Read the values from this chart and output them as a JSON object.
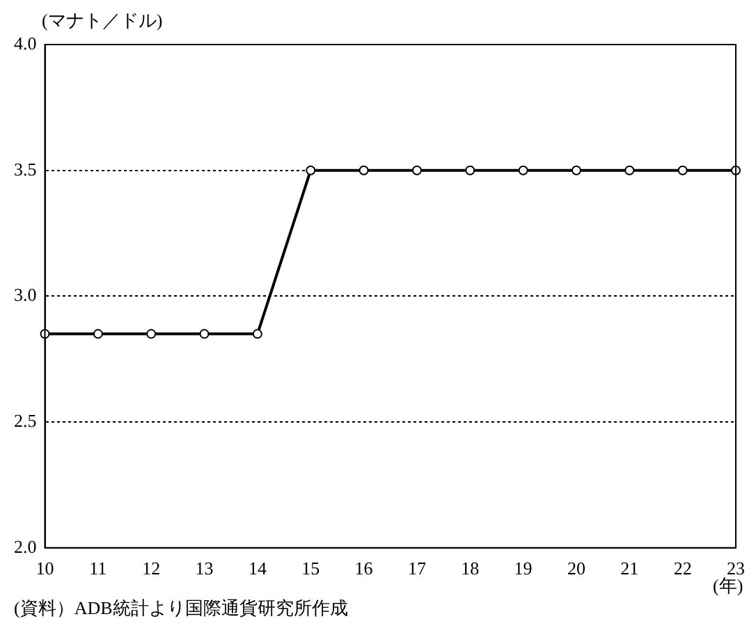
{
  "chart_data": {
    "type": "line",
    "ylabel": "(マナト／ドル)",
    "xlabel": "(年)",
    "categories": [
      "10",
      "11",
      "12",
      "13",
      "14",
      "15",
      "16",
      "17",
      "18",
      "19",
      "20",
      "21",
      "22",
      "23"
    ],
    "series": [
      {
        "color": "#000000",
        "values": [
          2.85,
          2.85,
          2.85,
          2.85,
          2.85,
          3.5,
          3.5,
          3.5,
          3.5,
          3.5,
          3.5,
          3.5,
          3.5,
          3.5
        ]
      }
    ],
    "ylim": [
      2,
      4
    ],
    "yticks": [
      {
        "value": 2,
        "label": "2.0"
      },
      {
        "value": 2.5,
        "label": "2.5"
      },
      {
        "value": 3,
        "label": "3.0"
      },
      {
        "value": 3.5,
        "label": "3.5"
      },
      {
        "value": 4,
        "label": "4.0"
      }
    ],
    "grid": "y",
    "legend": false,
    "marker": "circle",
    "line_style": "solid",
    "annotations": [
      "(資料）ADB統計より国際通貨研究所作成"
    ]
  }
}
